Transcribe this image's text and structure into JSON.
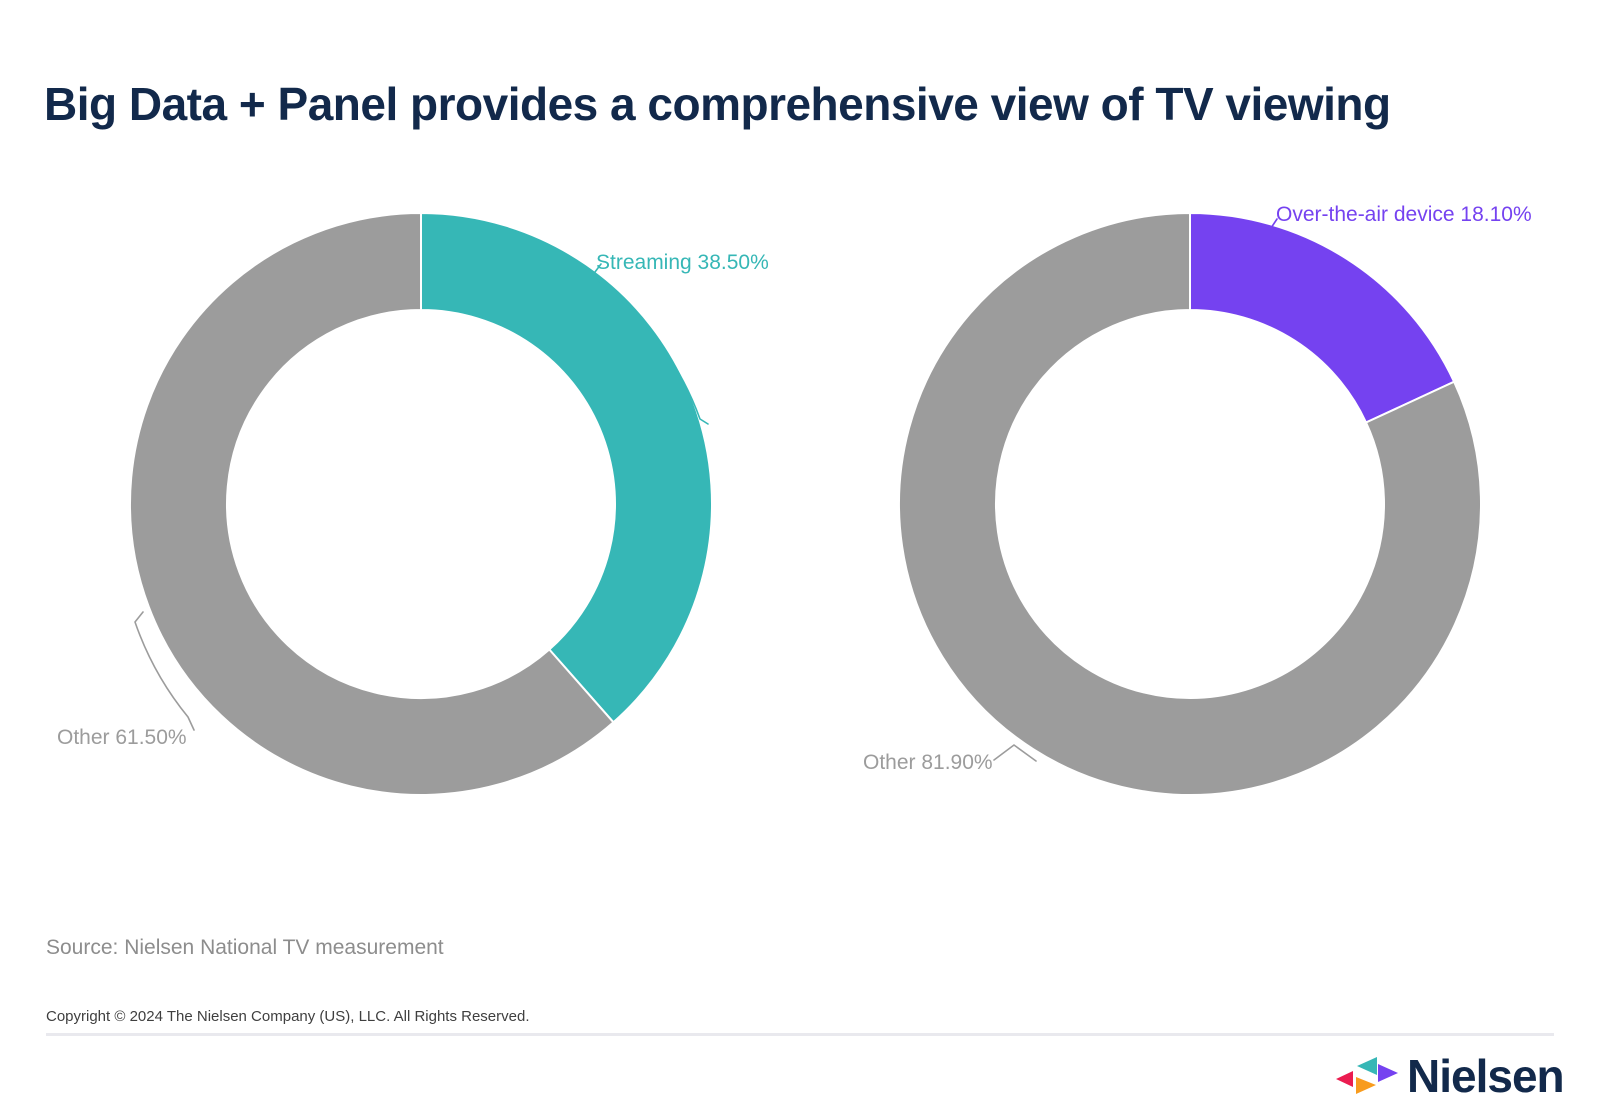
{
  "page": {
    "title": "Big Data + Panel provides a comprehensive view of TV viewing",
    "source_note": "Source: Nielsen National TV measurement",
    "copyright": "Copyright © 2024 The Nielsen Company (US), LLC. All Rights Reserved.",
    "brand_wordmark": "Nielsen"
  },
  "chart_data": [
    {
      "type": "pie",
      "subtype": "donut",
      "start_angle_deg": 0,
      "direction": "clockwise",
      "inner_radius_ratio": 0.67,
      "legend": "none",
      "slices": [
        {
          "label": "Streaming",
          "value": 38.5,
          "display_label": "Streaming 38.50%",
          "color": "#36b7b6"
        },
        {
          "label": "Other",
          "value": 61.5,
          "display_label": "Other 61.50%",
          "color": "#9c9c9c"
        }
      ]
    },
    {
      "type": "pie",
      "subtype": "donut",
      "start_angle_deg": 0,
      "direction": "clockwise",
      "inner_radius_ratio": 0.67,
      "legend": "none",
      "slices": [
        {
          "label": "Over-the-air device",
          "value": 18.1,
          "display_label": "Over-the-air device 18.10%",
          "color": "#7542f0"
        },
        {
          "label": "Other",
          "value": 81.9,
          "display_label": "Other 81.90%",
          "color": "#9c9c9c"
        }
      ]
    }
  ],
  "logo": {
    "colors": {
      "red": "#eb1c50",
      "teal": "#36b7b6",
      "orange": "#f89c1e",
      "purple": "#7542f0"
    }
  }
}
